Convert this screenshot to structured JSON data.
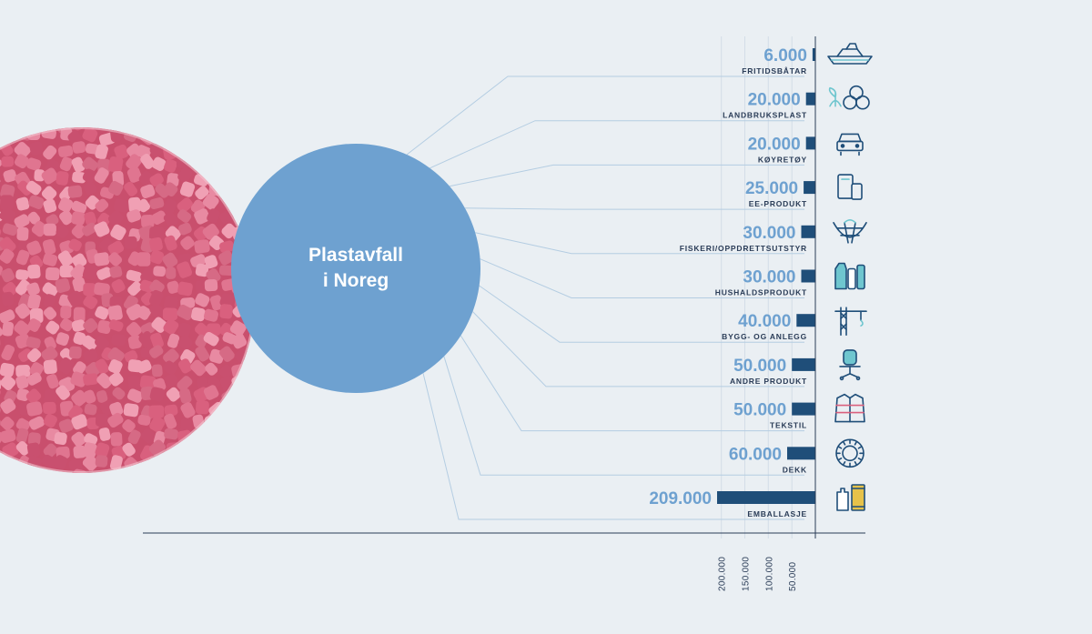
{
  "circle_title": {
    "line1": "Plastavfall",
    "line2": "i Noreg"
  },
  "colors": {
    "background": "#eaeff3",
    "circle": "#6ea1d0",
    "bar": "#1f4e79",
    "value_text": "#6ea1d0",
    "label_text": "#2a3c57",
    "leader_line": "#b4cde2",
    "pellet": "#d9607e",
    "icon": "#1f4e79",
    "icon_accent": "#6fc6cf"
  },
  "chart_data": {
    "type": "bar",
    "orientation": "horizontal",
    "title": "Plastavfall i Noreg",
    "categories": [
      "FRITIDSBÅTAR",
      "LANDBRUKSPLAST",
      "KØYRETØY",
      "EE-PRODUKT",
      "FISKERI/OPPDRETTSUTSTYR",
      "HUSHALDSPRODUKT",
      "BYGG- OG ANLEGG",
      "ANDRE PRODUKT",
      "TEKSTIL",
      "DEKK",
      "EMBALLASJE"
    ],
    "values": [
      6000,
      20000,
      20000,
      25000,
      30000,
      30000,
      40000,
      50000,
      50000,
      60000,
      209000
    ],
    "value_labels": [
      "6.000",
      "20.000",
      "20.000",
      "25.000",
      "30.000",
      "30.000",
      "40.000",
      "50.000",
      "50.000",
      "60.000",
      "209.000"
    ],
    "icons": [
      "boat-icon",
      "agriculture-bales-icon",
      "car-icon",
      "devices-icon",
      "fishing-net-icon",
      "household-bottles-icon",
      "crane-icon",
      "office-chair-icon",
      "jacket-icon",
      "tire-icon",
      "packaging-icon"
    ],
    "axis_ticks": [
      {
        "value": 200000,
        "label": "200.000"
      },
      {
        "value": 150000,
        "label": "150.000"
      },
      {
        "value": 100000,
        "label": "100.000"
      },
      {
        "value": 50000,
        "label": "50.000"
      }
    ],
    "xlim": [
      0,
      209000
    ],
    "grid": true,
    "bars_grow_leftward": true
  }
}
